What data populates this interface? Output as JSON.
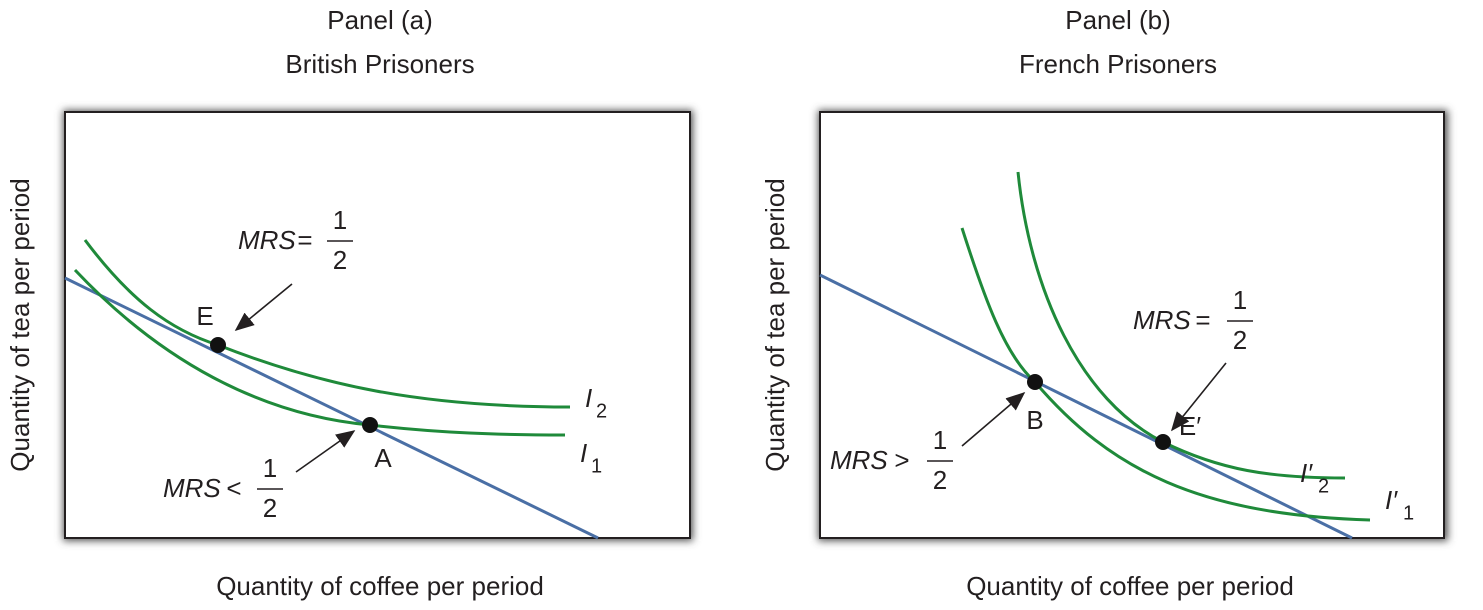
{
  "panels": [
    {
      "panel": "Panel (a)",
      "title": "British Prisoners",
      "x_label": "Quantity of coffee per period",
      "y_label": "Quantity of tea per period",
      "points": [
        "E",
        "A"
      ],
      "curves": [
        {
          "name": "I",
          "sub": "2"
        },
        {
          "name": "I",
          "sub": "1"
        }
      ],
      "annotations": [
        {
          "text": "MRS",
          "relation": "=",
          "numerator": "1",
          "denominator": "2"
        },
        {
          "text": "MRS",
          "relation": "<",
          "numerator": "1",
          "denominator": "2"
        }
      ]
    },
    {
      "panel": "Panel (b)",
      "title": "French Prisoners",
      "x_label": "Quantity of coffee per period",
      "y_label": "Quantity of tea per period",
      "points": [
        "B",
        "E′"
      ],
      "curves": [
        {
          "name": "I′",
          "sub": "2"
        },
        {
          "name": "I′",
          "sub": "1"
        }
      ],
      "annotations": [
        {
          "text": "MRS",
          "relation": "=",
          "numerator": "1",
          "denominator": "2"
        },
        {
          "text": "MRS",
          "relation": ">",
          "numerator": "1",
          "denominator": "2"
        }
      ]
    }
  ]
}
